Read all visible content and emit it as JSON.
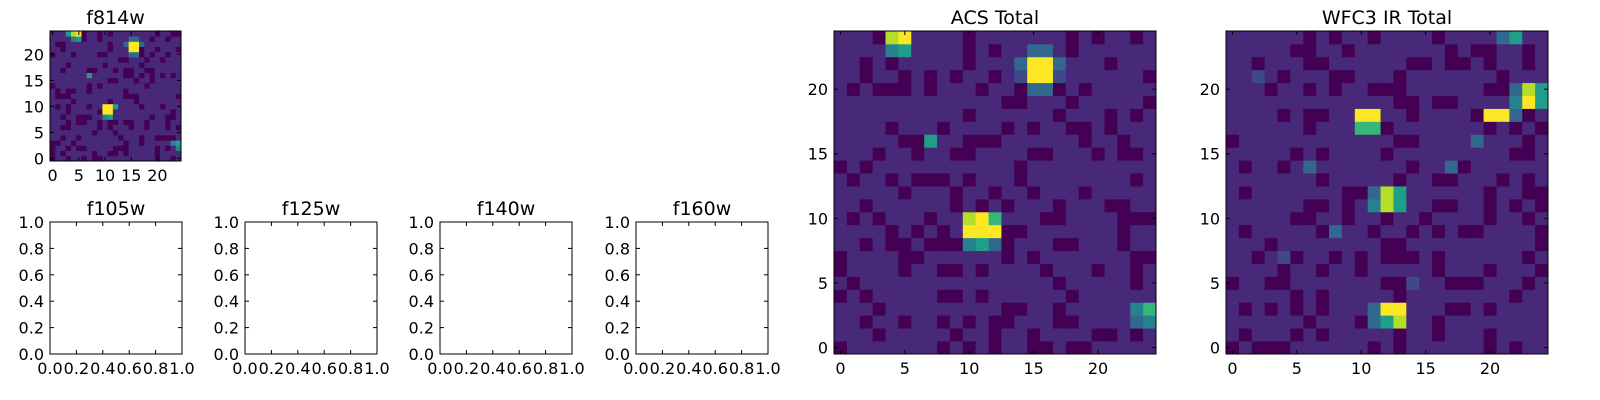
{
  "chart_data": [
    {
      "type": "heatmap",
      "title": "f814w",
      "xlim": [
        -0.5,
        24.5
      ],
      "ylim": [
        -0.5,
        24.5
      ],
      "xticks": [
        0,
        5,
        10,
        15,
        20
      ],
      "yticks": [
        0,
        5,
        10,
        15,
        20
      ],
      "colormap": "viridis",
      "grid": false,
      "pixels": "bright sources near (4,24), (5,24), (15,22), (11,10), (10,9), (7,16), (24,3)"
    },
    {
      "type": "empty",
      "title": "f105w",
      "xlim": [
        0,
        1
      ],
      "ylim": [
        0,
        1
      ],
      "xticks": [
        "0.0",
        "0.2",
        "0.4",
        "0.6",
        "0.8",
        "1.0"
      ],
      "yticks": [
        "0.0",
        "0.2",
        "0.4",
        "0.6",
        "0.8",
        "1.0"
      ]
    },
    {
      "type": "empty",
      "title": "f125w",
      "xlim": [
        0,
        1
      ],
      "ylim": [
        0,
        1
      ],
      "xticks": [
        "0.0",
        "0.2",
        "0.4",
        "0.6",
        "0.8",
        "1.0"
      ],
      "yticks": [
        "0.0",
        "0.2",
        "0.4",
        "0.6",
        "0.8",
        "1.0"
      ]
    },
    {
      "type": "empty",
      "title": "f140w",
      "xlim": [
        0,
        1
      ],
      "ylim": [
        0,
        1
      ],
      "xticks": [
        "0.0",
        "0.2",
        "0.4",
        "0.6",
        "0.8",
        "1.0"
      ],
      "yticks": [
        "0.0",
        "0.2",
        "0.4",
        "0.6",
        "0.8",
        "1.0"
      ]
    },
    {
      "type": "empty",
      "title": "f160w",
      "xlim": [
        0,
        1
      ],
      "ylim": [
        0,
        1
      ],
      "xticks": [
        "0.0",
        "0.2",
        "0.4",
        "0.6",
        "0.8",
        "1.0"
      ],
      "yticks": [
        "0.0",
        "0.2",
        "0.4",
        "0.6",
        "0.8",
        "1.0"
      ]
    },
    {
      "type": "heatmap",
      "title": "ACS Total",
      "xlim": [
        -0.5,
        24.5
      ],
      "ylim": [
        -0.5,
        24.5
      ],
      "xticks": [
        0,
        5,
        10,
        15,
        20
      ],
      "yticks": [
        0,
        5,
        10,
        15,
        20
      ],
      "colormap": "viridis",
      "grid": false
    },
    {
      "type": "heatmap",
      "title": "WFC3 IR Total",
      "xlim": [
        -0.5,
        24.5
      ],
      "ylim": [
        -0.5,
        24.5
      ],
      "xticks": [
        0,
        5,
        10,
        15,
        20
      ],
      "yticks": [
        0,
        5,
        10,
        15,
        20
      ],
      "colormap": "viridis",
      "grid": false
    }
  ],
  "colors": {
    "viridis": [
      "#440154",
      "#482878",
      "#3e4989",
      "#31688e",
      "#26828e",
      "#1f9e89",
      "#35b779",
      "#6ece58",
      "#b5de2b",
      "#fde725"
    ],
    "background_low": "#440154",
    "bright": "#fde725"
  }
}
